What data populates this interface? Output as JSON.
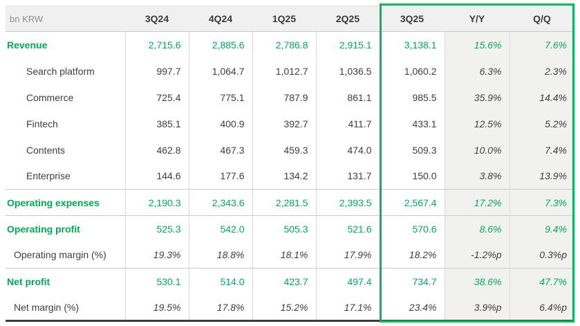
{
  "chart_data": {
    "type": "table",
    "unit_label": "bn KRW",
    "columns": [
      "3Q24",
      "4Q24",
      "1Q25",
      "2Q25",
      "3Q25",
      "Y/Y",
      "Q/Q"
    ],
    "highlighted_columns": [
      "3Q25",
      "Y/Y",
      "Q/Q"
    ],
    "rows": [
      {
        "label": "Revenue",
        "type": "primary",
        "section_start": false,
        "values": [
          "2,715.6",
          "2,885.6",
          "2,786.8",
          "2,915.1",
          "3,138.1",
          "15.6%",
          "7.6%"
        ]
      },
      {
        "label": "Search platform",
        "type": "sub",
        "section_start": false,
        "values": [
          "997.7",
          "1,064.7",
          "1,012.7",
          "1,036.5",
          "1,060.2",
          "6.3%",
          "2.3%"
        ]
      },
      {
        "label": "Commerce",
        "type": "sub",
        "section_start": false,
        "values": [
          "725.4",
          "775.1",
          "787.9",
          "861.1",
          "985.5",
          "35.9%",
          "14.4%"
        ]
      },
      {
        "label": "Fintech",
        "type": "sub",
        "section_start": false,
        "values": [
          "385.1",
          "400.9",
          "392.7",
          "411.7",
          "433.1",
          "12.5%",
          "5.2%"
        ]
      },
      {
        "label": "Contents",
        "type": "sub",
        "section_start": false,
        "values": [
          "462.8",
          "467.3",
          "459.3",
          "474.0",
          "509.3",
          "10.0%",
          "7.4%"
        ]
      },
      {
        "label": "Enterprise",
        "type": "sub",
        "section_start": false,
        "values": [
          "144.6",
          "177.6",
          "134.2",
          "131.7",
          "150.0",
          "3.8%",
          "13.9%"
        ]
      },
      {
        "label": "Operating expenses",
        "type": "primary",
        "section_start": true,
        "values": [
          "2,190.3",
          "2,343.6",
          "2,281.5",
          "2,393.5",
          "2,567.4",
          "17.2%",
          "7.3%"
        ]
      },
      {
        "label": "Operating profit",
        "type": "primary",
        "section_start": true,
        "values": [
          "525.3",
          "542.0",
          "505.3",
          "521.6",
          "570.6",
          "8.6%",
          "9.4%"
        ]
      },
      {
        "label": "Operating margin (%)",
        "type": "margin",
        "section_start": false,
        "values": [
          "19.3%",
          "18.8%",
          "18.1%",
          "17.9%",
          "18.2%",
          "-1.2%p",
          "0.3%p"
        ]
      },
      {
        "label": "Net profit",
        "type": "primary",
        "section_start": true,
        "values": [
          "530.1",
          "514.0",
          "423.7",
          "497.4",
          "734.7",
          "38.6%",
          "47.7%"
        ]
      },
      {
        "label": "Net margin (%)",
        "type": "margin",
        "section_start": false,
        "values": [
          "19.5%",
          "17.8%",
          "15.2%",
          "17.1%",
          "23.4%",
          "3.9%p",
          "6.4%p"
        ]
      }
    ]
  },
  "colors": {
    "accent_green": "#00ab55",
    "highlight_border_green": "#05b85c",
    "header_bg": "#f0f0f0",
    "shaded_column_bg": "#f1f1ef",
    "dark_text": "#3d3d3d",
    "muted_text": "#8f8f8f",
    "bottom_border": "#3b3b3b"
  }
}
